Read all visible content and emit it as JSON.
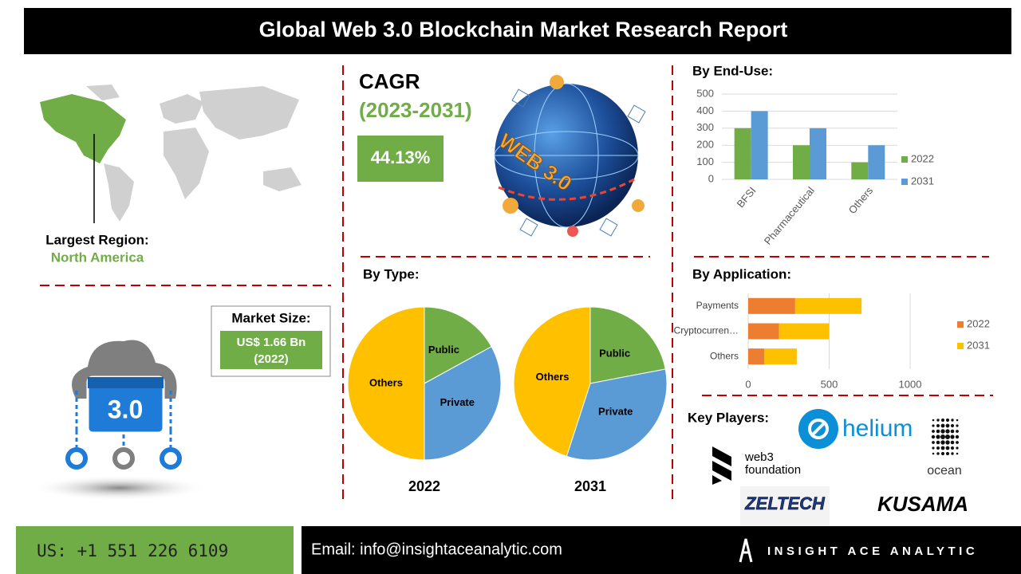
{
  "header": {
    "title": "Global Web 3.0 Blockchain Market Research Report"
  },
  "region": {
    "label": "Largest Region:",
    "value": "North America"
  },
  "market_size": {
    "label": "Market Size:",
    "value": "US$ 1.66 Bn",
    "year": "(2022)"
  },
  "cagr": {
    "label": "CAGR",
    "period": "(2023-2031)",
    "value": "44.13%"
  },
  "illustration": {
    "globe_text": "WEB 3.0",
    "icon_text": "3.0"
  },
  "by_type": {
    "title": "By Type:"
  },
  "chart_data": [
    {
      "type": "pie",
      "title": "2022",
      "categories": [
        "Public",
        "Private",
        "Others"
      ],
      "values": [
        17,
        33,
        50
      ],
      "colors": [
        "#70ad47",
        "#5b9bd5",
        "#ffc000"
      ]
    },
    {
      "type": "pie",
      "title": "2031",
      "categories": [
        "Public",
        "Private",
        "Others"
      ],
      "values": [
        22,
        33,
        45
      ],
      "colors": [
        "#70ad47",
        "#5b9bd5",
        "#ffc000"
      ]
    },
    {
      "type": "bar",
      "title": "By End-Use:",
      "categories": [
        "BFSI",
        "Pharmaceutical",
        "Others"
      ],
      "series": [
        {
          "name": "2022",
          "color": "#70ad47",
          "values": [
            300,
            200,
            100
          ]
        },
        {
          "name": "2031",
          "color": "#5b9bd5",
          "values": [
            400,
            300,
            200
          ]
        }
      ],
      "ylim": [
        0,
        500
      ],
      "yticks": [
        0,
        100,
        200,
        300,
        400,
        500
      ],
      "grid": true,
      "legend": "right"
    },
    {
      "type": "stacked-hbar",
      "title": "By Application:",
      "categories": [
        "Payments",
        "Cryptocurren…",
        "Others"
      ],
      "series": [
        {
          "name": "2022",
          "color": "#ed7d31",
          "values": [
            290,
            190,
            100
          ]
        },
        {
          "name": "2031",
          "color": "#ffc000",
          "values": [
            410,
            310,
            200
          ]
        }
      ],
      "xlim": [
        0,
        1000
      ],
      "xticks": [
        0,
        500,
        1000
      ],
      "grid": true,
      "legend": "right"
    }
  ],
  "key_players": {
    "title": "Key Players:",
    "helium": "helium",
    "web3_line1": "web3",
    "web3_line2": "foundation",
    "ocean": "ocean",
    "zeltech": "ZELTECH",
    "kusama": "KUSAMA"
  },
  "footer": {
    "phone": "US: +1 551 226 6109",
    "email": "Email: info@insightaceanalytic.com",
    "brand": "INSIGHT ACE ANALYTIC"
  }
}
